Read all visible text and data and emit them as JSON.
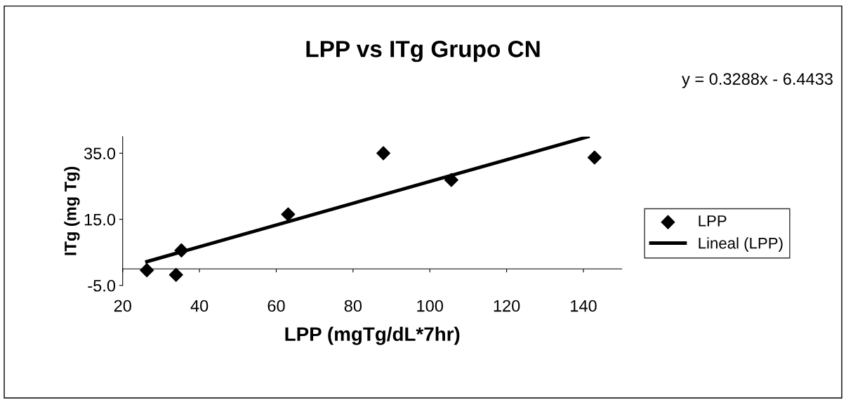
{
  "chart_data": {
    "type": "scatter",
    "title": "LPP vs ITg Grupo CN",
    "xlabel": "LPP (mgTg/dL*7hr)",
    "ylabel": "ITg (mg Tg)",
    "annotations": [
      "y = 0.3288x - 6.4433"
    ],
    "xlim": [
      20,
      150
    ],
    "xticks": [
      20,
      40,
      60,
      80,
      100,
      120,
      140
    ],
    "ylim": [
      -5,
      40
    ],
    "yticks": [
      {
        "value": -5,
        "label": "-5.0"
      },
      {
        "value": 15,
        "label": "15.0"
      },
      {
        "value": 35,
        "label": "35.0"
      }
    ],
    "grid": false,
    "legend": "right",
    "series": [
      {
        "name": "LPP",
        "color": "#000000",
        "marker": "diamond",
        "x": [
          26.3,
          33.9,
          35.3,
          63.1,
          87.9,
          105.6,
          142.9
        ],
        "values": [
          -0.4,
          -1.8,
          5.6,
          16.5,
          35.0,
          26.9,
          33.7
        ]
      },
      {
        "name": "Lineal (LPP)",
        "type": "line",
        "color": "#000000",
        "line_style": "solid",
        "x": [
          26.3,
          141.2
        ],
        "values": [
          2.2,
          40.0
        ]
      }
    ]
  }
}
